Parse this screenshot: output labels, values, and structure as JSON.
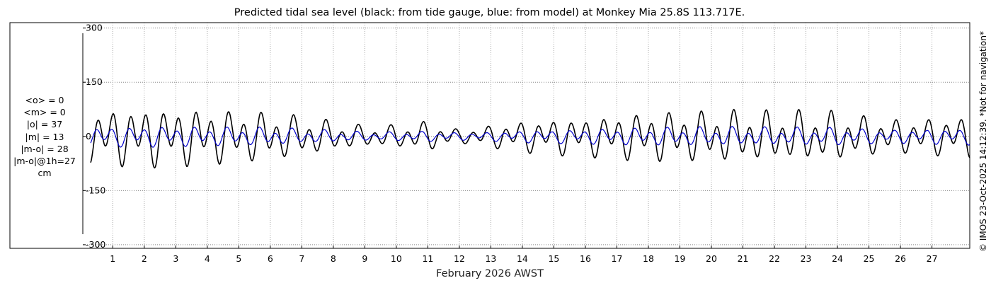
{
  "chart_data": {
    "type": "line",
    "title": "Predicted tidal sea level (black: from tide gauge, blue: from model) at Monkey Mia 25.8S 113.717E.",
    "xlabel": "February 2026 AWST",
    "ylabel": "",
    "units": "cm",
    "xlim": [
      0.05,
      28.2
    ],
    "ylim": [
      -310,
      315
    ],
    "y_ticks": [
      300,
      150,
      0,
      -150,
      -300
    ],
    "y_tick_labels": [
      "300",
      "150",
      "0",
      "-150",
      "-300"
    ],
    "x_ticks": [
      1,
      2,
      3,
      4,
      5,
      6,
      7,
      8,
      9,
      10,
      11,
      12,
      13,
      14,
      15,
      16,
      17,
      18,
      19,
      20,
      21,
      22,
      23,
      24,
      25,
      26,
      27
    ],
    "grid": true,
    "series": [
      {
        "name": "from tide gauge",
        "color": "#000000",
        "amplitude_envelope": {
          "day": [
            0.3,
            2,
            3,
            4,
            5,
            6,
            7,
            8,
            9,
            10,
            11,
            12,
            13,
            14,
            15,
            16,
            17,
            18,
            19,
            20,
            21,
            22,
            23,
            24,
            25,
            26,
            27,
            28.2
          ],
          "amplitude_cm": [
            72,
            80,
            78,
            75,
            70,
            64,
            54,
            40,
            28,
            30,
            40,
            18,
            30,
            42,
            48,
            52,
            60,
            66,
            68,
            68,
            70,
            66,
            68,
            66,
            52,
            45,
            50,
            55
          ]
        }
      },
      {
        "name": "from model",
        "color": "#0000cc",
        "amplitude_envelope": {
          "day": [
            0.3,
            2,
            3,
            4,
            5,
            6,
            7,
            8,
            9,
            10,
            11,
            12,
            13,
            14,
            15,
            16,
            17,
            18,
            19,
            20,
            21,
            22,
            23,
            24,
            25,
            26,
            27,
            28.2
          ],
          "amplitude_cm": [
            26,
            28,
            27,
            26,
            25,
            24,
            20,
            16,
            12,
            12,
            14,
            10,
            12,
            16,
            18,
            20,
            22,
            24,
            25,
            25,
            25,
            24,
            24,
            24,
            20,
            18,
            20,
            22
          ]
        }
      }
    ]
  },
  "stats": {
    "mean_obs": "<o> = 0",
    "mean_model": "<m> = 0",
    "abs_obs": "|o| = 37",
    "abs_model": "|m| = 13",
    "abs_diff": "|m-o| = 28",
    "abs_diff_1h": "|m-o|@1h=27",
    "units": "cm"
  },
  "credit": "© IMOS 23-Oct-2025 14:12:39. *Not for navigation*",
  "colors": {
    "obs": "#000000",
    "model": "#0000cc",
    "grid": "#888888"
  }
}
